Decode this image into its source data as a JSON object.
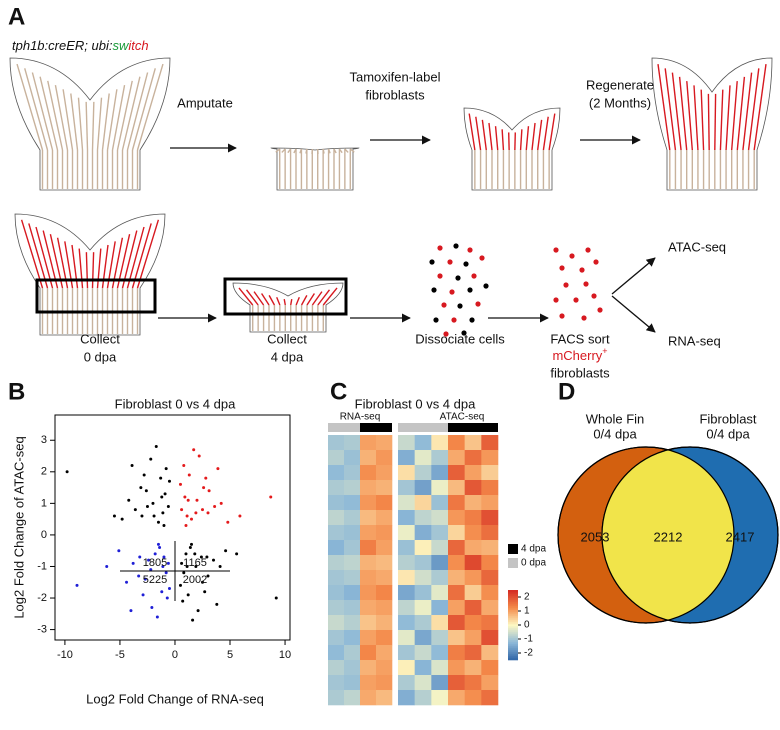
{
  "figure": {
    "letters": [
      "A",
      "B",
      "C",
      "D"
    ],
    "panel_a": {
      "genotype": {
        "main": "tph1b:creER; ubi:",
        "green": "sw",
        "red": "itch"
      },
      "amputate": "Amputate",
      "label": [
        "Tamoxifen-label",
        "fibroblasts"
      ],
      "regenerate": [
        "Regenerate",
        "(2 Months)"
      ],
      "collect0": [
        "Collect",
        "0 dpa"
      ],
      "collect4": [
        "Collect",
        "4 dpa"
      ],
      "dissociate": "Dissociate cells",
      "facs": [
        "FACS sort",
        "mCherry",
        "+",
        "fibroblasts"
      ],
      "atac": "ATAC-seq",
      "rna": "RNA-seq"
    }
  },
  "chart_data": [
    {
      "type": "scatter",
      "title": "Fibroblast 0 vs 4 dpa",
      "xlabel": "Log2 Fold Change of RNA-seq",
      "ylabel": "Log2 Fold Change of ATAC-seq",
      "xlim": [
        -10.9,
        10.45
      ],
      "ylim": [
        -3.33,
        3.8
      ],
      "xticks": [
        -10,
        -5,
        0,
        5,
        10
      ],
      "yticks": [
        3,
        2,
        1,
        0,
        -1,
        -2,
        -3
      ],
      "quadrant_counts": [
        1805,
        1165,
        5225,
        2002
      ],
      "series": [
        {
          "color": "#000000",
          "x": [
            -1.2,
            -2.5,
            -0.8,
            -3.1,
            -1.9,
            -4.2,
            -0.5,
            -2.2,
            -1.5,
            -3.6,
            -2.8,
            -1.1,
            -0.9,
            -2.0,
            -4.8,
            -1.7,
            -3.0,
            -0.6,
            -2.6,
            -1.3,
            -9.8,
            -5.5,
            -3.9,
            -1.0
          ],
          "y": [
            1.2,
            0.9,
            2.1,
            1.5,
            0.6,
            1.1,
            1.7,
            2.4,
            0.4,
            0.8,
            1.9,
            0.7,
            1.3,
            1.0,
            0.5,
            2.8,
            0.6,
            0.9,
            1.4,
            1.8,
            2.0,
            0.6,
            2.2,
            0.3
          ]
        },
        {
          "color": "#e41a1c",
          "x": [
            1.2,
            2.5,
            0.8,
            3.1,
            1.9,
            4.2,
            0.5,
            2.2,
            1.5,
            3.6,
            2.8,
            1.1,
            0.9,
            2.0,
            4.8,
            1.7,
            3.0,
            0.6,
            2.6,
            1.3,
            8.7,
            5.9,
            3.9,
            1.0
          ],
          "y": [
            1.1,
            0.8,
            2.2,
            1.4,
            0.7,
            1.0,
            1.6,
            2.5,
            0.5,
            0.9,
            1.8,
            0.6,
            1.2,
            1.1,
            0.4,
            2.7,
            0.7,
            0.8,
            1.5,
            1.9,
            1.2,
            0.6,
            2.1,
            0.3
          ]
        },
        {
          "color": "#1f1fd6",
          "x": [
            -1.1,
            -2.4,
            -0.7,
            -3.3,
            -1.8,
            -4.4,
            -0.5,
            -2.1,
            -1.4,
            -3.8,
            -2.9,
            -1.0,
            -0.8,
            -2.2,
            -5.1,
            -1.6,
            -3.2,
            -0.6,
            -2.7,
            -1.2,
            -8.9,
            -6.2,
            -4.0,
            -1.5
          ],
          "y": [
            -1.0,
            -0.8,
            -2.0,
            -1.3,
            -0.6,
            -1.5,
            -1.7,
            -2.3,
            -0.4,
            -0.9,
            -1.9,
            -0.7,
            -1.2,
            -1.1,
            -0.5,
            -2.6,
            -0.7,
            -0.9,
            -1.4,
            -1.8,
            -1.6,
            -1.0,
            -2.4,
            -0.3
          ]
        },
        {
          "color": "#000000",
          "x": [
            1.1,
            2.4,
            0.7,
            3.0,
            1.8,
            4.1,
            0.5,
            2.1,
            1.4,
            3.5,
            2.7,
            1.0,
            0.8,
            1.9,
            4.6,
            1.6,
            2.9,
            0.6,
            2.5,
            1.2,
            9.2,
            5.6,
            3.8,
            1.5
          ],
          "y": [
            -1.0,
            -0.7,
            -2.1,
            -1.3,
            -0.6,
            -1.0,
            -1.6,
            -2.4,
            -0.4,
            -0.8,
            -1.8,
            -0.6,
            -1.2,
            -1.0,
            -0.5,
            -2.7,
            -0.7,
            -0.9,
            -1.5,
            -1.9,
            -2.0,
            -0.6,
            -2.2,
            -0.3
          ]
        }
      ]
    },
    {
      "type": "heatmap",
      "title": "Fibroblast 0 vs 4 dpa",
      "legend": [
        {
          "label": "4 dpa",
          "color": "#000000"
        },
        {
          "label": "0 dpa",
          "color": "#c4c4c4"
        }
      ],
      "colorbar": {
        "ticks": [
          2,
          1,
          0,
          -1,
          -2
        ],
        "limits": [
          -2.5,
          2.5
        ],
        "colors": [
          "#2f64a6",
          "#8db8d8",
          "#fdf8c3",
          "#f48a4a",
          "#d42a23"
        ]
      },
      "blocks": [
        {
          "label": "RNA-seq",
          "groups": [
            {
              "condition": "0 dpa",
              "rows": [
                [
                  -1.0,
                  -0.9
                ],
                [
                  -0.8,
                  -1.1
                ],
                [
                  -1.2,
                  -1.0
                ],
                [
                  -0.9,
                  -0.8
                ],
                [
                  -1.1,
                  -1.2
                ],
                [
                  -0.7,
                  -0.9
                ],
                [
                  -1.0,
                  -1.1
                ],
                [
                  -1.3,
                  -1.0
                ],
                [
                  -0.8,
                  -0.7
                ],
                [
                  -1.0,
                  -0.9
                ],
                [
                  -1.1,
                  -1.3
                ],
                [
                  -0.9,
                  -1.0
                ],
                [
                  -0.6,
                  -0.8
                ],
                [
                  -1.0,
                  -1.2
                ],
                [
                  -1.2,
                  -0.9
                ],
                [
                  -0.8,
                  -1.0
                ],
                [
                  -1.0,
                  -1.1
                ],
                [
                  -0.9,
                  -0.7
                ]
              ]
            },
            {
              "condition": "4 dpa",
              "rows": [
                [
                  1.0,
                  0.9
                ],
                [
                  0.8,
                  1.1
                ],
                [
                  1.2,
                  1.0
                ],
                [
                  0.9,
                  0.8
                ],
                [
                  1.1,
                  1.3
                ],
                [
                  0.7,
                  0.9
                ],
                [
                  1.0,
                  1.1
                ],
                [
                  1.4,
                  1.0
                ],
                [
                  0.8,
                  0.7
                ],
                [
                  1.0,
                  0.9
                ],
                [
                  1.1,
                  1.3
                ],
                [
                  0.9,
                  1.0
                ],
                [
                  0.6,
                  0.8
                ],
                [
                  1.0,
                  1.2
                ],
                [
                  1.3,
                  0.9
                ],
                [
                  0.8,
                  1.0
                ],
                [
                  1.0,
                  1.1
                ],
                [
                  0.9,
                  0.7
                ]
              ]
            }
          ]
        },
        {
          "label": "ATAC-seq",
          "groups": [
            {
              "condition": "0 dpa",
              "rows": [
                [
                  -0.6,
                  -1.2,
                  0.2
                ],
                [
                  -1.4,
                  -0.3,
                  -0.9
                ],
                [
                  0.3,
                  -0.8,
                  -1.5
                ],
                [
                  -1.0,
                  -1.6,
                  -0.2
                ],
                [
                  -0.4,
                  0.4,
                  -1.1
                ],
                [
                  -1.3,
                  -0.7,
                  -0.5
                ],
                [
                  -0.2,
                  -1.4,
                  -1.0
                ],
                [
                  -1.1,
                  0.1,
                  -0.6
                ],
                [
                  -0.8,
                  -1.0,
                  -1.7
                ],
                [
                  0.2,
                  -0.5,
                  -0.9
                ],
                [
                  -1.5,
                  -1.1,
                  -0.3
                ],
                [
                  -0.7,
                  -0.2,
                  -1.3
                ],
                [
                  -1.2,
                  -0.9,
                  0.3
                ],
                [
                  -0.3,
                  -1.5,
                  -0.8
                ],
                [
                  -1.0,
                  -0.6,
                  -1.2
                ],
                [
                  0.1,
                  -1.3,
                  -0.4
                ],
                [
                  -0.9,
                  -0.4,
                  -1.6
                ],
                [
                  -1.4,
                  -0.8,
                  -0.1
                ]
              ]
            },
            {
              "condition": "4 dpa",
              "rows": [
                [
                  1.3,
                  0.6,
                  1.8
                ],
                [
                  0.9,
                  1.6,
                  1.1
                ],
                [
                  1.8,
                  1.0,
                  0.5
                ],
                [
                  0.7,
                  1.9,
                  1.4
                ],
                [
                  1.5,
                  0.8,
                  1.0
                ],
                [
                  1.1,
                  1.4,
                  2.0
                ],
                [
                  0.4,
                  1.2,
                  1.6
                ],
                [
                  1.7,
                  0.9,
                  0.8
                ],
                [
                  1.2,
                  2.1,
                  1.3
                ],
                [
                  0.8,
                  1.1,
                  1.7
                ],
                [
                  1.6,
                  0.5,
                  1.2
                ],
                [
                  1.0,
                  1.8,
                  0.9
                ],
                [
                  1.9,
                  1.3,
                  1.5
                ],
                [
                  0.6,
                  1.0,
                  2.0
                ],
                [
                  1.4,
                  1.7,
                  0.7
                ],
                [
                  1.1,
                  0.8,
                  1.3
                ],
                [
                  1.8,
                  1.5,
                  1.0
                ],
                [
                  0.9,
                  1.2,
                  1.6
                ]
              ]
            }
          ]
        }
      ]
    },
    {
      "type": "venn",
      "sets": [
        {
          "label": [
            "Whole Fin",
            "0/4 dpa"
          ],
          "color": "#d3600f",
          "only": 2053
        },
        {
          "label": [
            "Fibroblast",
            "0/4 dpa"
          ],
          "color": "#1f6db0",
          "only": 2417
        }
      ],
      "intersection": 2212,
      "intersection_color": "#f1e44a"
    }
  ]
}
